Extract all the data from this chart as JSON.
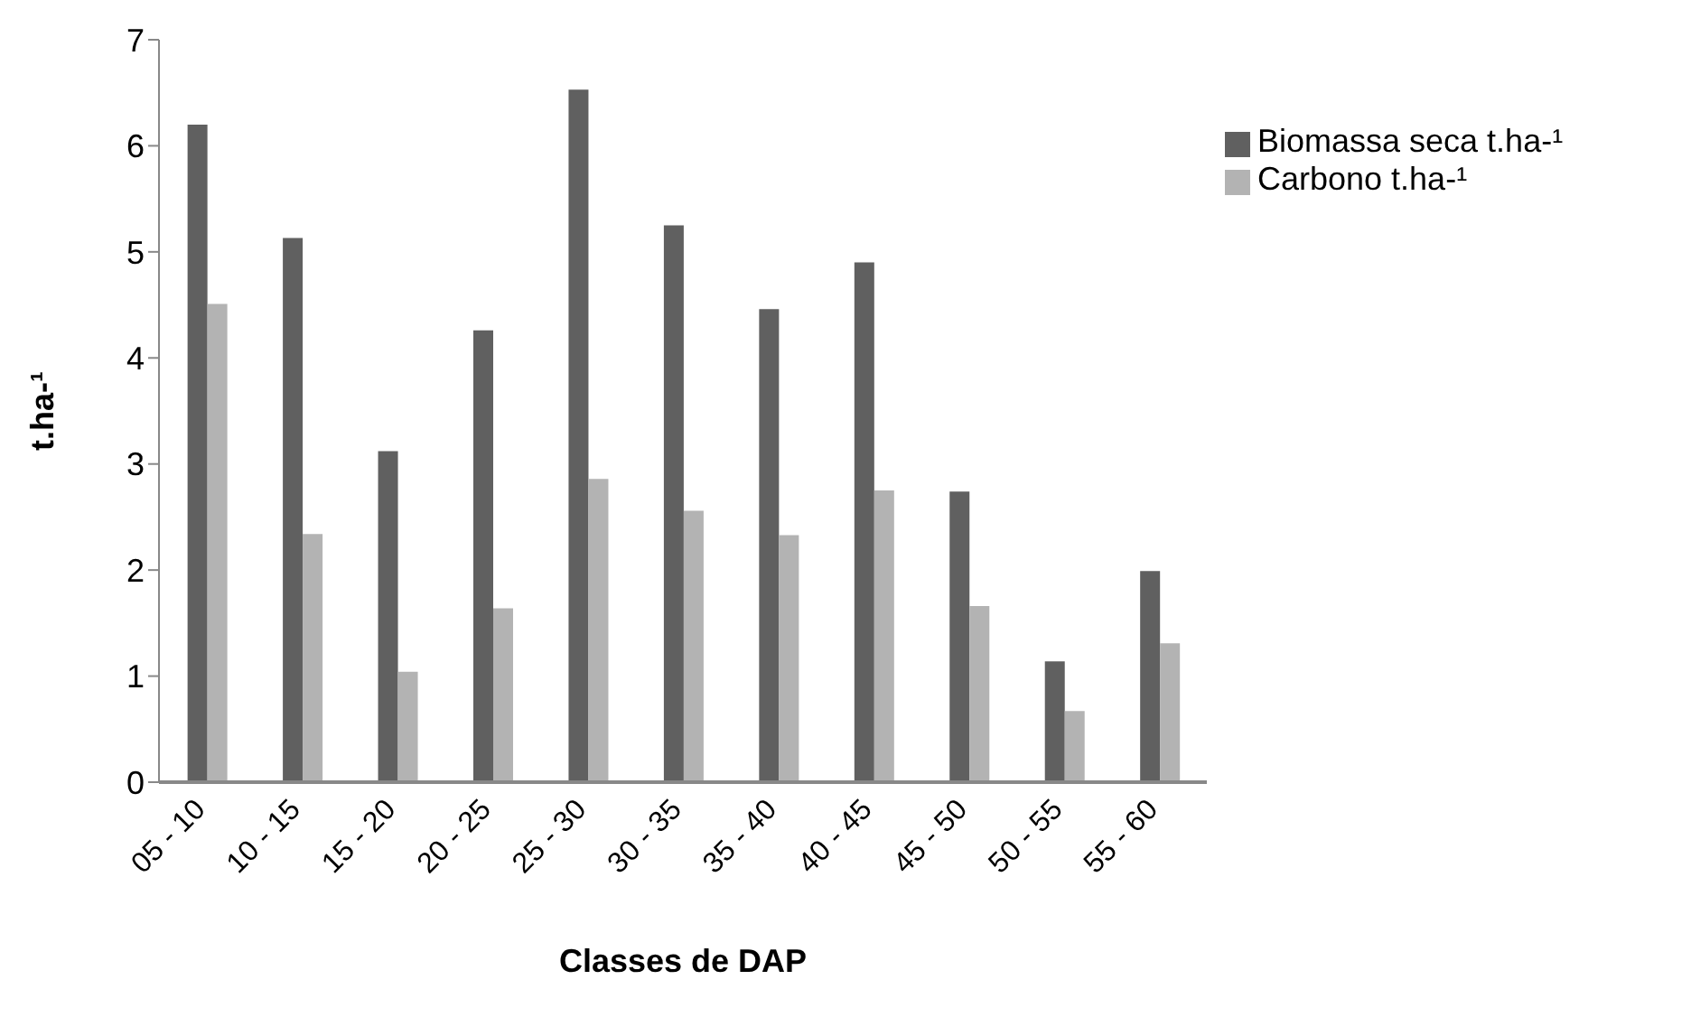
{
  "chart_data": {
    "type": "bar",
    "xlabel": "Classes de DAP",
    "ylabel": "t.ha-¹",
    "categories": [
      "05 - 10",
      "10 - 15",
      "15 - 20",
      "20 - 25",
      "25 - 30",
      "30 - 35",
      "35 - 40",
      "40 - 45",
      "45 - 50",
      "50 - 55",
      "55 - 60"
    ],
    "series": [
      {
        "name": "Biomassa seca t.ha-¹",
        "color": "#606060",
        "values": [
          6.2,
          5.13,
          3.12,
          4.26,
          6.53,
          5.25,
          4.46,
          4.9,
          2.74,
          1.14,
          1.99
        ]
      },
      {
        "name": "Carbono t.ha-¹",
        "color": "#b3b3b3",
        "values": [
          4.51,
          2.34,
          1.04,
          1.64,
          2.86,
          2.56,
          2.33,
          2.75,
          1.66,
          0.67,
          1.31
        ]
      }
    ],
    "ylim": [
      0,
      7
    ],
    "yticks": [
      0,
      1,
      2,
      3,
      4,
      5,
      6,
      7
    ],
    "grid": false,
    "legend": "top right"
  }
}
